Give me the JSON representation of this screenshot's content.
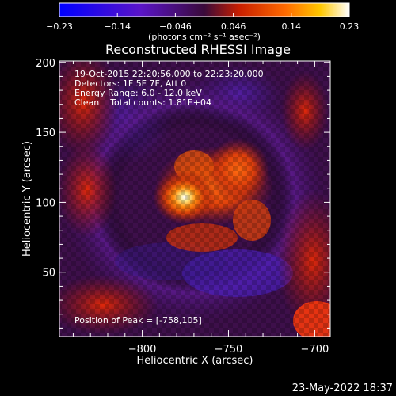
{
  "chart_data": {
    "type": "heatmap",
    "title": "Reconstructed RHESSI Image",
    "xlabel": "Heliocentric X (arcsec)",
    "ylabel": "Heliocentric Y (arcsec)",
    "xlim": [
      -848,
      -691
    ],
    "ylim": [
      4,
      201
    ],
    "xticks": [
      -800,
      -750,
      -700
    ],
    "yticks": [
      50,
      100,
      150,
      200
    ],
    "x_tick_labels": [
      "−800",
      "−750",
      "−700"
    ],
    "y_tick_labels": [
      "50",
      "100",
      "150",
      "200"
    ],
    "colorbar": {
      "range": [
        -0.23,
        0.23
      ],
      "tick_labels": [
        "−0.23",
        "−0.14",
        "−0.046",
        "0.046",
        "0.14",
        "0.23"
      ],
      "unit_label": "(photons cm⁻² s⁻¹ asec⁻²)",
      "colormap": "blue-purple-red-orange-yellow-white"
    },
    "annotations": [
      "19-Oct-2015 22:20:56.000 to 22:23:20.000",
      "Detectors: 1F 5F 7F, Att 0",
      "Energy Range: 6.0 - 12.0 keV",
      "Clean    Total counts: 1.81E+04"
    ],
    "peak_label": "Position of Peak = [-758,105]",
    "peak": {
      "x": -758,
      "y": 105
    }
  },
  "footer": {
    "timestamp": "23-May-2022 18:37"
  },
  "colors": {
    "background": "#000000",
    "text": "#ffffff"
  }
}
